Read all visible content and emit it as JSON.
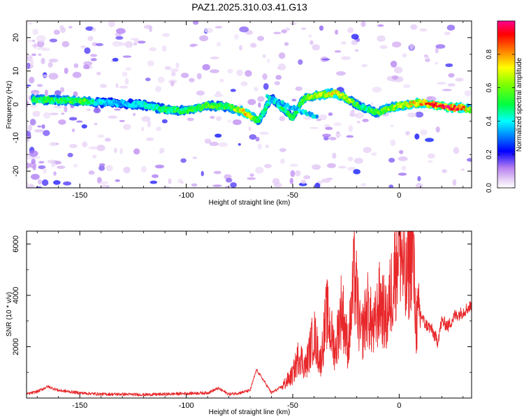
{
  "title": "PAZ1.2025.310.03.41.G13",
  "chart_data": [
    {
      "type": "heatmap",
      "name": "spectrogram",
      "xlabel": "Height of straight line (km)",
      "ylabel": "Frequency (Hz)",
      "xlim": [
        -175,
        34
      ],
      "ylim": [
        -25,
        25
      ],
      "xticks": [
        -150,
        -100,
        -50,
        0
      ],
      "yticks": [
        -20,
        -10,
        0,
        10,
        20
      ],
      "colorbar": {
        "label": "Normalized spectral amplitude",
        "range": [
          0.0,
          1.0
        ],
        "ticks": [
          0.0,
          0.2,
          0.4,
          0.6,
          0.8
        ],
        "colors": [
          "#ffffff",
          "#e6cff5",
          "#b77ff0",
          "#7a00ff",
          "#0000ff",
          "#00c8ff",
          "#00ff80",
          "#40ff00",
          "#ffff00",
          "#ff8000",
          "#ff0000",
          "#ff00a0"
        ]
      },
      "signal_track": {
        "heights_km": [
          -172,
          -160,
          -150,
          -140,
          -130,
          -120,
          -110,
          -100,
          -90,
          -80,
          -72,
          -66,
          -60,
          -55,
          -50,
          -45,
          -40,
          -35,
          -30,
          -25,
          -20,
          -15,
          -10,
          -5,
          0,
          5,
          10,
          15,
          20,
          25,
          30,
          34
        ],
        "frequency_hz": [
          1.5,
          1.2,
          1.0,
          0.5,
          0.3,
          -0.2,
          -1.5,
          -2.0,
          -0.3,
          -0.8,
          -2.5,
          -5.0,
          2.0,
          -1.0,
          -4.0,
          1.5,
          2.5,
          3.0,
          3.5,
          2.0,
          0.0,
          -1.5,
          -2.5,
          -1.0,
          -0.5,
          0.0,
          0.5,
          0.0,
          -0.5,
          -1.0,
          -1.0,
          -1.5
        ],
        "amplitude": [
          0.55,
          0.5,
          0.6,
          0.4,
          0.35,
          0.45,
          0.5,
          0.55,
          0.6,
          0.55,
          0.85,
          0.5,
          0.45,
          0.5,
          0.55,
          0.6,
          0.65,
          0.7,
          0.75,
          0.7,
          0.55,
          0.5,
          0.6,
          0.65,
          0.7,
          0.75,
          0.8,
          0.9,
          0.95,
          0.98,
          0.85,
          0.6
        ]
      }
    },
    {
      "type": "line",
      "name": "snr",
      "xlabel": "Height of straight line (km)",
      "ylabel": "SNR (10 * v/v)",
      "xlim": [
        -175,
        34
      ],
      "ylim": [
        0,
        6500
      ],
      "xticks": [
        -150,
        -100,
        -50,
        0
      ],
      "yticks": [
        2000,
        4000,
        6000
      ],
      "color": "#e8272a",
      "series": [
        {
          "name": "SNR",
          "x": [
            -175,
            -170,
            -165,
            -160,
            -150,
            -140,
            -130,
            -120,
            -110,
            -100,
            -90,
            -85,
            -80,
            -75,
            -70,
            -67,
            -63,
            -60,
            -55,
            -50,
            -47,
            -44,
            -40,
            -37,
            -34,
            -30,
            -27,
            -24,
            -21,
            -18,
            -15,
            -12,
            -9,
            -6,
            -3,
            0,
            3,
            6,
            8,
            10,
            12,
            15,
            18,
            20,
            23,
            26,
            29,
            32,
            34
          ],
          "y": [
            150,
            250,
            450,
            300,
            200,
            150,
            150,
            130,
            150,
            180,
            200,
            380,
            150,
            200,
            300,
            1100,
            600,
            200,
            450,
            900,
            1700,
            1200,
            2500,
            1400,
            3300,
            1800,
            3600,
            1900,
            4800,
            2300,
            3500,
            2600,
            3800,
            3000,
            4500,
            6400,
            4200,
            6300,
            2900,
            3300,
            2900,
            2700,
            2200,
            3000,
            2800,
            3200,
            3300,
            3500,
            3600
          ]
        }
      ]
    }
  ]
}
